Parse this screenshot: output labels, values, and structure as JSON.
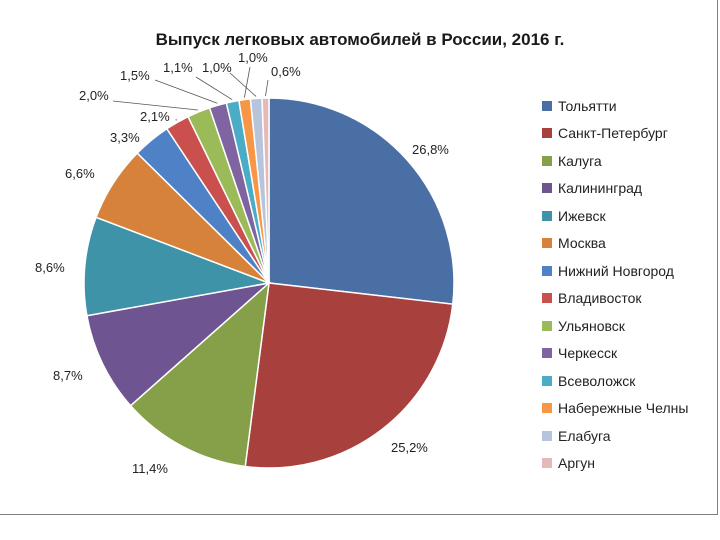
{
  "chart_data": {
    "type": "pie",
    "title": "Выпуск легковых автомобилей в России, 2016 г.",
    "legend_position": "right",
    "slices": [
      {
        "name": "Тольятти",
        "value": 26.8,
        "label": "26,8%",
        "color": "#4a6fa5"
      },
      {
        "name": "Санкт-Петербург",
        "value": 25.2,
        "label": "25,2%",
        "color": "#a8403d"
      },
      {
        "name": "Калуга",
        "value": 11.4,
        "label": "11,4%",
        "color": "#86a04a"
      },
      {
        "name": "Калининград",
        "value": 8.7,
        "label": "8,7%",
        "color": "#6e5490"
      },
      {
        "name": "Ижевск",
        "value": 8.6,
        "label": "8,6%",
        "color": "#3e93a9"
      },
      {
        "name": "Москва",
        "value": 6.6,
        "label": "6,6%",
        "color": "#d7823a"
      },
      {
        "name": "Нижний Новгород",
        "value": 3.3,
        "label": "3,3%",
        "color": "#4f81c7"
      },
      {
        "name": "Владивосток",
        "value": 2.1,
        "label": "2,1%",
        "color": "#c9504d"
      },
      {
        "name": "Ульяновск",
        "value": 2.0,
        "label": "2,0%",
        "color": "#9bbb59"
      },
      {
        "name": "Черкесск",
        "value": 1.5,
        "label": "1,5%",
        "color": "#8064a2"
      },
      {
        "name": "Всеволожск",
        "value": 1.1,
        "label": "1,1%",
        "color": "#4bacc6"
      },
      {
        "name": "Набережные Челны",
        "value": 1.0,
        "label": "1,0%",
        "color": "#f79646"
      },
      {
        "name": "Елабуга",
        "value": 1.0,
        "label": "1,0%",
        "color": "#b6c5dc"
      },
      {
        "name": "Аргун",
        "value": 0.6,
        "label": "0,6%",
        "color": "#e6b9b8"
      }
    ]
  }
}
